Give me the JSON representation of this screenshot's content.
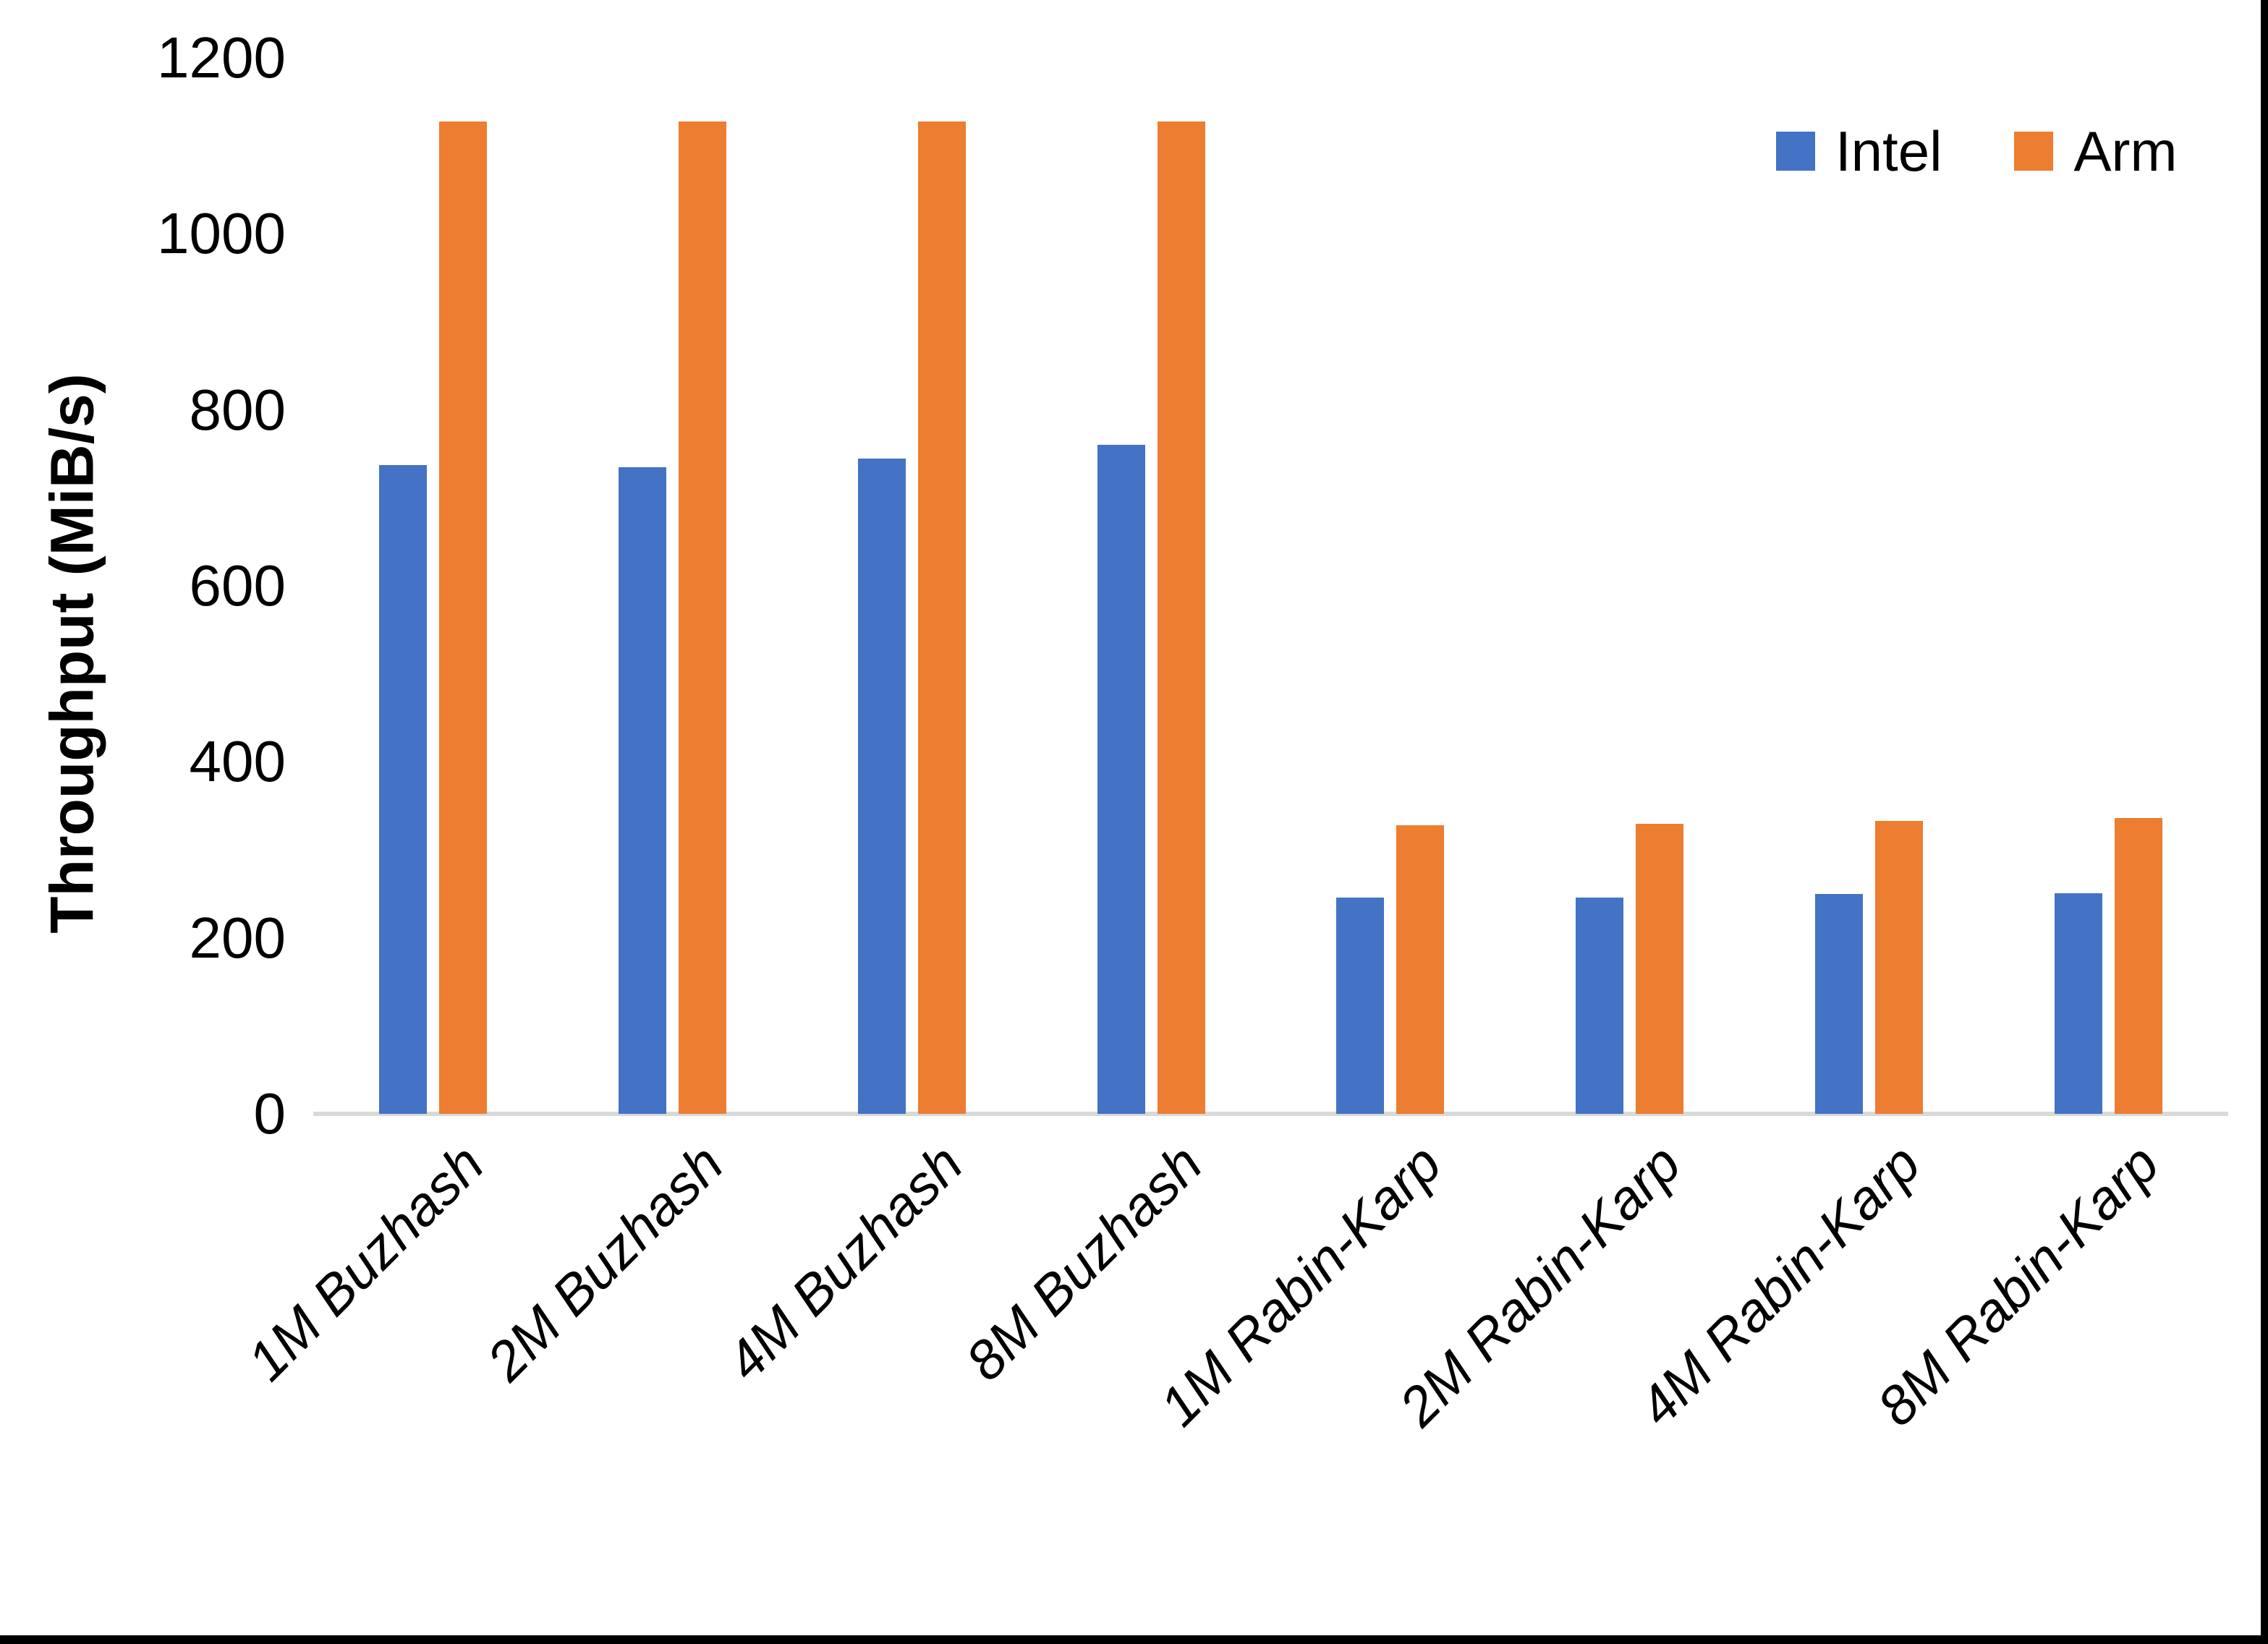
{
  "y_axis": {
    "title": "Throughput (MiB/s)",
    "tick_labels": [
      "0",
      "200",
      "400",
      "600",
      "800",
      "1000",
      "1200"
    ]
  },
  "legend": {
    "items": [
      {
        "label": "Intel",
        "color": "#4472C4"
      },
      {
        "label": "Arm",
        "color": "#ED7D31"
      }
    ]
  },
  "chart_data": {
    "type": "bar",
    "categories": [
      "1M Buzhash",
      "2M Buzhash",
      "4M Buzhash",
      "8M Buzhash",
      "1M Rabin-Karp",
      "2M Rabin-Karp",
      "4M Rabin-Karp",
      "8M Rabin-Karp"
    ],
    "series": [
      {
        "name": "Intel",
        "color": "#4472C4",
        "values": [
          737,
          735,
          745,
          760,
          246,
          246,
          250,
          251
        ]
      },
      {
        "name": "Arm",
        "color": "#ED7D31",
        "values": [
          1128,
          1128,
          1128,
          1128,
          328,
          330,
          333,
          336
        ]
      }
    ],
    "title": "",
    "xlabel": "",
    "ylabel": "Throughput (MiB/s)",
    "ylim": [
      0,
      1200
    ],
    "ytick_step": 200,
    "grid": false,
    "legend_position": "top-right"
  }
}
